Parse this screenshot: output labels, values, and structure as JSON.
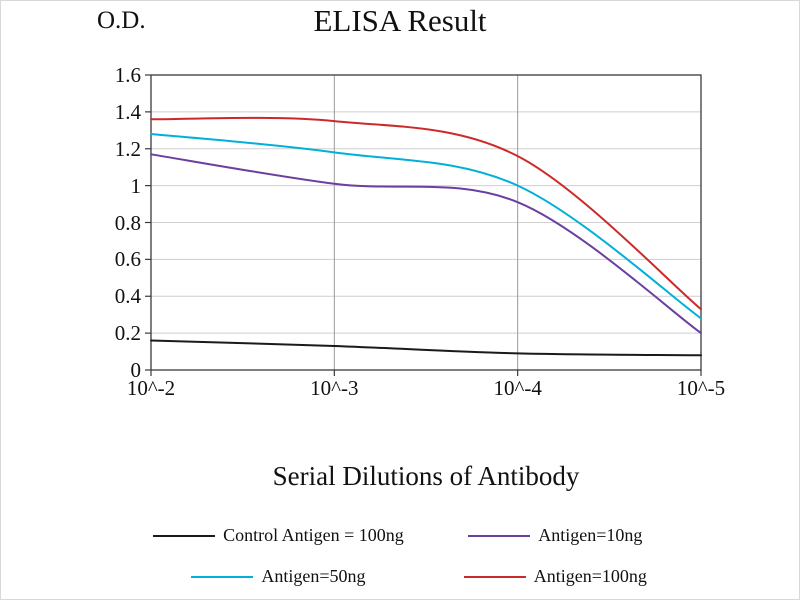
{
  "header": {
    "y_axis_unit": "O.D.",
    "title": "ELISA Result"
  },
  "x_axis": {
    "title": "Serial Dilutions of Antibody"
  },
  "chart_data": {
    "type": "line",
    "title": "ELISA Result",
    "xlabel": "Serial Dilutions of Antibody",
    "ylabel": "O.D.",
    "categories": [
      "10^-2",
      "10^-3",
      "10^-4",
      "10^-5"
    ],
    "y_ticks": [
      0,
      0.2,
      0.4,
      0.6,
      0.8,
      1,
      1.2,
      1.4,
      1.6
    ],
    "ylim": [
      0,
      1.6
    ],
    "grid": true,
    "legend_position": "bottom",
    "series": [
      {
        "name": "Control Antigen = 100ng",
        "color": "#1a1a1a",
        "values": [
          0.16,
          0.13,
          0.09,
          0.08
        ]
      },
      {
        "name": "Antigen=10ng",
        "color": "#6b3fa0",
        "values": [
          1.17,
          1.01,
          0.91,
          0.2
        ]
      },
      {
        "name": "Antigen=50ng",
        "color": "#00b0d8",
        "values": [
          1.28,
          1.18,
          1.0,
          0.28
        ]
      },
      {
        "name": "Antigen=100ng",
        "color": "#cc2a2a",
        "values": [
          1.36,
          1.35,
          1.16,
          0.33
        ]
      }
    ]
  }
}
